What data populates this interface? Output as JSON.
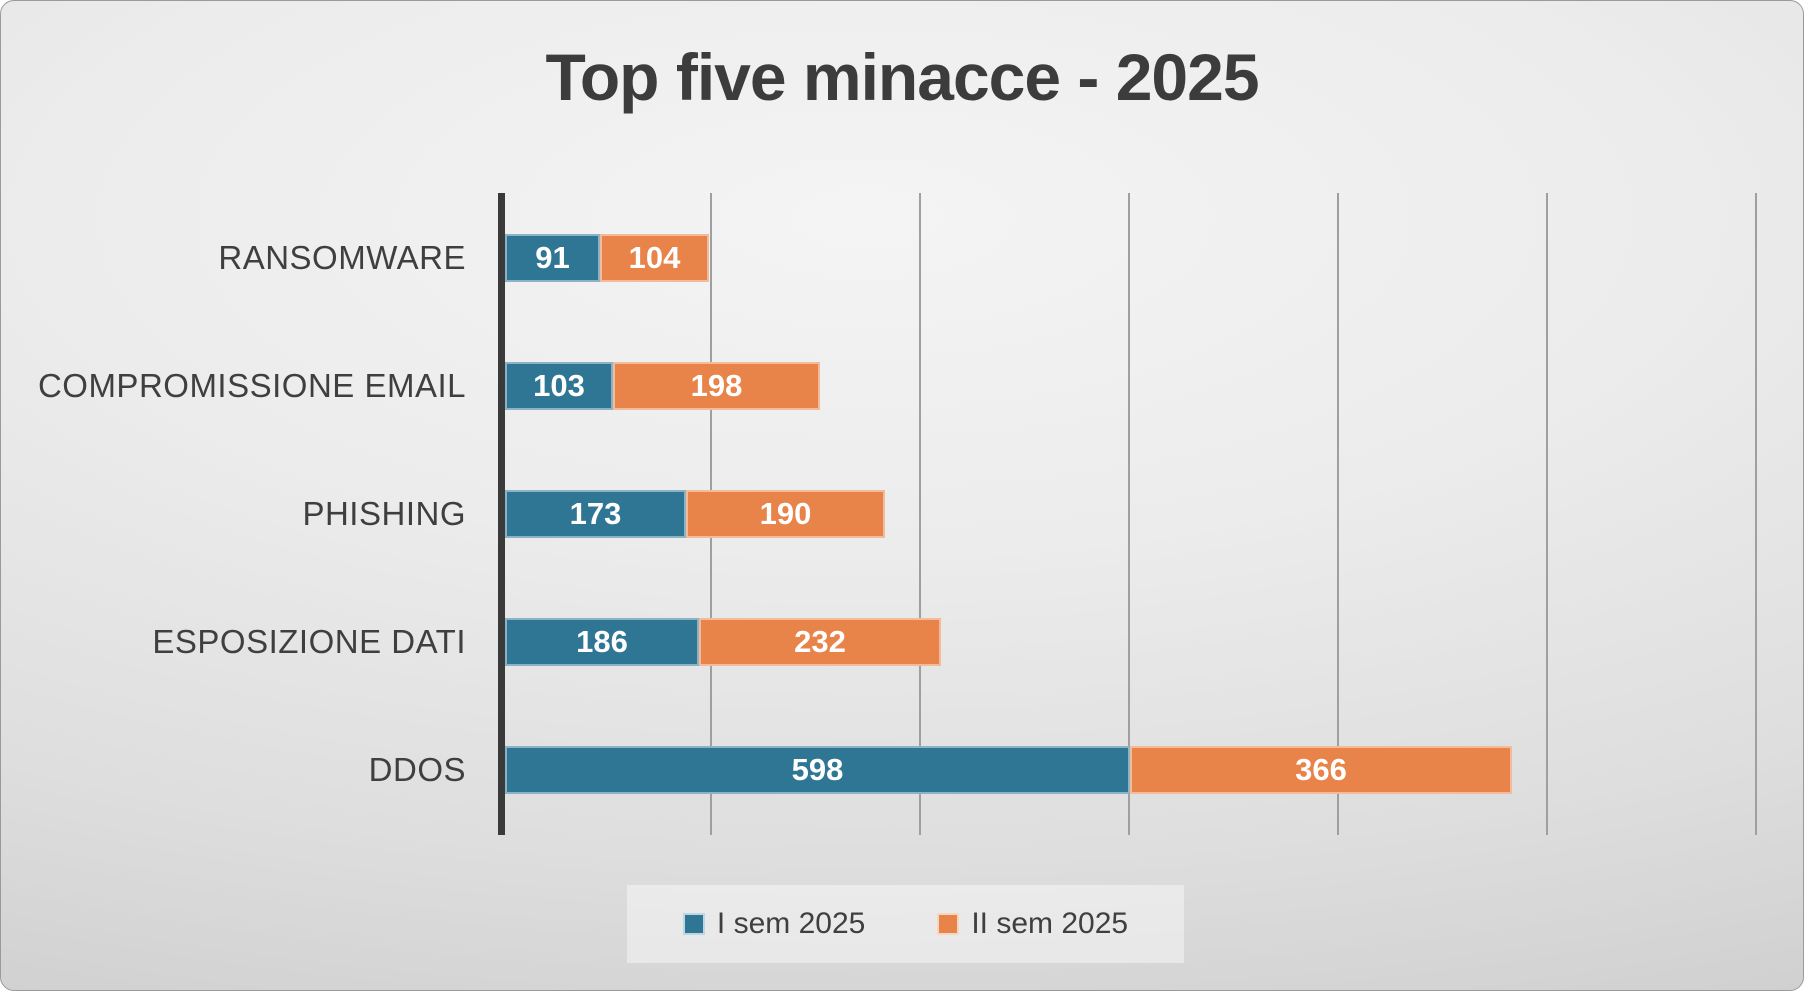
{
  "chart_data": {
    "type": "bar",
    "orientation": "horizontal",
    "stacked": true,
    "title": "Top five minacce - 2025",
    "categories": [
      "RANSOMWARE",
      "COMPROMISSIONE EMAIL",
      "PHISHING",
      "ESPOSIZIONE DATI",
      "DDOS"
    ],
    "series": [
      {
        "name": "I sem 2025",
        "color": "#2F7695",
        "values": [
          91,
          103,
          173,
          186,
          598
        ]
      },
      {
        "name": "II sem 2025",
        "color": "#E8834A",
        "values": [
          104,
          198,
          190,
          232,
          366
        ]
      }
    ],
    "totals": [
      195,
      301,
      363,
      418,
      964
    ],
    "xlim": [
      0,
      1235
    ],
    "gridline_interval": 200,
    "grid": true,
    "x_axis_labels_visible": false,
    "value_labels": "inside",
    "legend_position": "bottom"
  },
  "legend": {
    "items": [
      {
        "label": "I sem 2025",
        "color": "#2F7695"
      },
      {
        "label": "II sem 2025",
        "color": "#E8834A"
      }
    ]
  },
  "colors": {
    "series1": "#2F7695",
    "series2": "#E8834A",
    "title_text": "#3C3C3C",
    "label_text": "#3F3F3F",
    "axis_line": "#3A3A3A",
    "gridline": "#9F9F9F",
    "value_label_text": "#FFFFFF"
  }
}
